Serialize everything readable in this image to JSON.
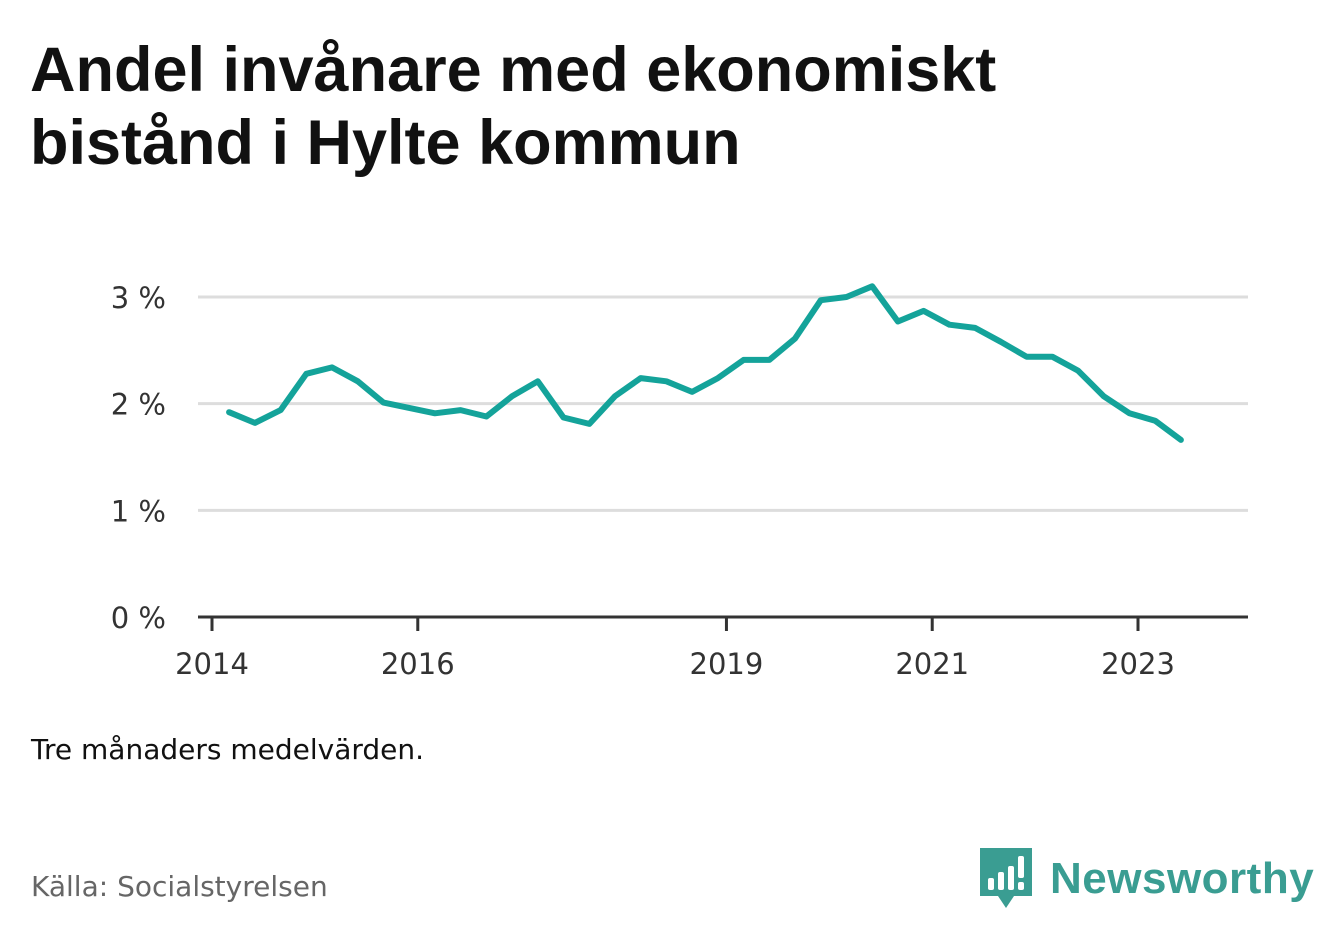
{
  "title": "Andel invånare med ekonomiskt bistånd i Hylte kommun",
  "note": "Tre månaders medelvärden.",
  "source": "Källa: Socialstyrelsen",
  "brand": {
    "name": "Newsworthy",
    "icon": "newsworthy-logo-icon"
  },
  "colors": {
    "line": "#14a39a",
    "grid": "#dddddd",
    "axis": "#333333",
    "brand": "#3a9d92"
  },
  "chart_data": {
    "type": "line",
    "title": "Andel invånare med ekonomiskt bistånd i Hylte kommun",
    "xlabel": "",
    "ylabel": "",
    "ylim": [
      0,
      3
    ],
    "y_ticks": [
      {
        "value": 0,
        "label": "0 %"
      },
      {
        "value": 1,
        "label": "1 %"
      },
      {
        "value": 2,
        "label": "2 %"
      },
      {
        "value": 3,
        "label": "3 %"
      }
    ],
    "x_ticks": [
      {
        "date": "2014-01",
        "label": "2014"
      },
      {
        "date": "2016-01",
        "label": "2016"
      },
      {
        "date": "2019-01",
        "label": "2019"
      },
      {
        "date": "2021-01",
        "label": "2021"
      },
      {
        "date": "2023-01",
        "label": "2023"
      }
    ],
    "x_range": [
      "2013-12",
      "2024-02"
    ],
    "grid": true,
    "series": [
      {
        "points": [
          {
            "x": "2014-03",
            "y": 1.92
          },
          {
            "x": "2014-06",
            "y": 1.82
          },
          {
            "x": "2014-09",
            "y": 1.94
          },
          {
            "x": "2014-12",
            "y": 2.28
          },
          {
            "x": "2015-03",
            "y": 2.34
          },
          {
            "x": "2015-06",
            "y": 2.21
          },
          {
            "x": "2015-09",
            "y": 2.01
          },
          {
            "x": "2015-12",
            "y": 1.96
          },
          {
            "x": "2016-03",
            "y": 1.91
          },
          {
            "x": "2016-06",
            "y": 1.94
          },
          {
            "x": "2016-09",
            "y": 1.88
          },
          {
            "x": "2016-12",
            "y": 2.07
          },
          {
            "x": "2017-03",
            "y": 2.21
          },
          {
            "x": "2017-06",
            "y": 1.87
          },
          {
            "x": "2017-09",
            "y": 1.81
          },
          {
            "x": "2017-12",
            "y": 2.07
          },
          {
            "x": "2018-03",
            "y": 2.24
          },
          {
            "x": "2018-06",
            "y": 2.21
          },
          {
            "x": "2018-09",
            "y": 2.11
          },
          {
            "x": "2018-12",
            "y": 2.24
          },
          {
            "x": "2019-03",
            "y": 2.41
          },
          {
            "x": "2019-06",
            "y": 2.41
          },
          {
            "x": "2019-09",
            "y": 2.61
          },
          {
            "x": "2019-12",
            "y": 2.97
          },
          {
            "x": "2020-03",
            "y": 3.0
          },
          {
            "x": "2020-06",
            "y": 3.1
          },
          {
            "x": "2020-09",
            "y": 2.77
          },
          {
            "x": "2020-12",
            "y": 2.87
          },
          {
            "x": "2021-03",
            "y": 2.74
          },
          {
            "x": "2021-06",
            "y": 2.71
          },
          {
            "x": "2021-09",
            "y": 2.58
          },
          {
            "x": "2021-12",
            "y": 2.44
          },
          {
            "x": "2022-03",
            "y": 2.44
          },
          {
            "x": "2022-06",
            "y": 2.31
          },
          {
            "x": "2022-09",
            "y": 2.07
          },
          {
            "x": "2022-12",
            "y": 1.91
          },
          {
            "x": "2023-03",
            "y": 1.84
          },
          {
            "x": "2023-06",
            "y": 1.66
          }
        ]
      }
    ]
  }
}
